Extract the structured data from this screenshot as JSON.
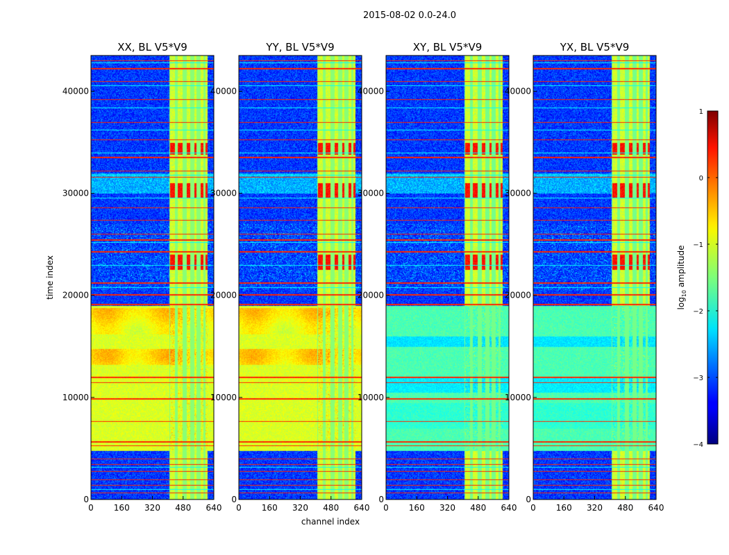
{
  "chart_data": {
    "type": "heatmap",
    "suptitle": "2015-08-02 0.0-24.0",
    "xlabel": "channel index",
    "ylabel": "time index",
    "xlim": [
      0,
      640
    ],
    "ylim": [
      0,
      43500
    ],
    "xticks": [
      0,
      160,
      320,
      480,
      640
    ],
    "yticks": [
      0,
      10000,
      20000,
      30000,
      40000
    ],
    "colorbar": {
      "label": "log",
      "label_sub": "10",
      "label_rest": " amplitude",
      "range": [
        -4,
        1
      ],
      "ticks": [
        1,
        0,
        -1,
        -2,
        -3,
        -4
      ],
      "tick_labels": [
        "1",
        "0",
        "−1",
        "−2",
        "−3",
        "−4"
      ],
      "colormap": "jet"
    },
    "panels": [
      {
        "title": "XX, BL V5*V9",
        "cross_pol": false
      },
      {
        "title": "YY, BL V5*V9",
        "cross_pol": false
      },
      {
        "title": "XY, BL V5*V9",
        "cross_pol": true
      },
      {
        "title": "YX, BL V5*V9",
        "cross_pol": true
      }
    ],
    "structure": {
      "rfi_channel_band": [
        405,
        605
      ],
      "rfi_stripes_channels": [
        405,
        440,
        445,
        480,
        490,
        520,
        530,
        555,
        565,
        590
      ],
      "high_amplitude_time_window": [
        4800,
        19000
      ],
      "levels_log10": {
        "background_low": -3.1,
        "parallel_day": -1.05,
        "cross_day": -1.75,
        "rfi_band": -1.1,
        "flag_lines": 0.2,
        "hot_blobs": 0.3
      },
      "flag_lines_time": [
        700,
        1400,
        2000,
        2800,
        3500,
        4000,
        5300,
        5700,
        7700,
        9900,
        11500,
        12000,
        19200,
        20100,
        21300,
        24300,
        25500,
        26000,
        27400,
        28600,
        31600,
        32200,
        33600,
        35300,
        37000,
        39200,
        41000,
        42300,
        43000
      ]
    }
  }
}
